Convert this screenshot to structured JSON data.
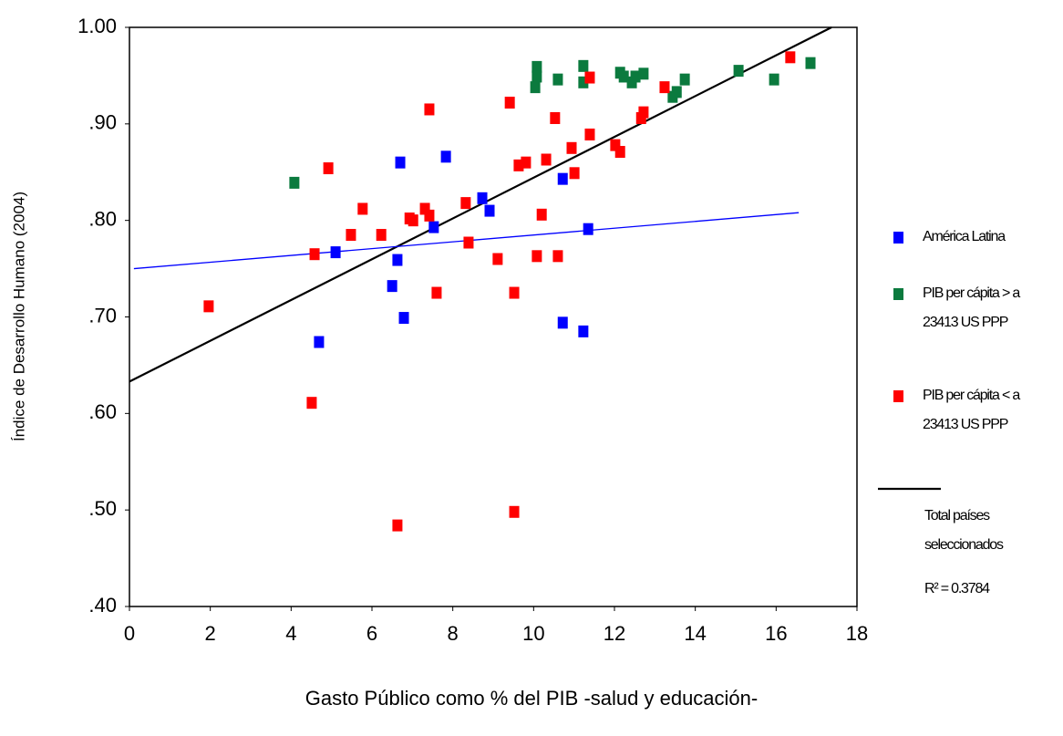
{
  "chart_data": {
    "type": "scatter",
    "x_label": "Gasto Público como % del PIB -salud y educación-",
    "y_label": "Índice de Desarrollo Humano (2004)",
    "xlim": [
      0,
      18
    ],
    "xticks": [
      0,
      2,
      4,
      6,
      8,
      10,
      12,
      14,
      16,
      18
    ],
    "ylim": [
      0.4,
      1
    ],
    "yticks": [
      {
        "value": 0.4,
        "label": ".40"
      },
      {
        "value": 0.5,
        "label": ".50"
      },
      {
        "value": 0.6,
        "label": ".60"
      },
      {
        "value": 0.7,
        "label": ".70"
      },
      {
        "value": 0.8,
        "label": ".80"
      },
      {
        "value": 0.9,
        "label": ".90"
      },
      {
        "value": 1,
        "label": "1.00"
      }
    ],
    "series": [
      {
        "name": "América Latina",
        "color": "#0000ff",
        "x": [
          4.69,
          5.1,
          6.5,
          6.63,
          6.7,
          6.79,
          7.53,
          7.83,
          8.73,
          8.91,
          10.72,
          10.72,
          11.23,
          11.35
        ],
        "values": [
          0.674,
          0.767,
          0.732,
          0.759,
          0.86,
          0.699,
          0.793,
          0.866,
          0.823,
          0.81,
          0.843,
          0.694,
          0.685,
          0.791
        ]
      },
      {
        "name": "PIB per cápita > a 23413 US PPP",
        "color": "#0b7a3e",
        "x": [
          4.08,
          10.08,
          10.08,
          10.04,
          10.6,
          11.23,
          11.23,
          12.14,
          12.23,
          12.43,
          12.52,
          12.72,
          13.44,
          13.54,
          13.74,
          15.07,
          15.95,
          16.85
        ],
        "values": [
          0.839,
          0.959,
          0.949,
          0.938,
          0.946,
          0.96,
          0.943,
          0.953,
          0.949,
          0.943,
          0.949,
          0.952,
          0.928,
          0.933,
          0.946,
          0.955,
          0.946,
          0.963
        ]
      },
      {
        "name": "PIB per cápita < a 23413 US PPP",
        "color": "#ff0000",
        "x": [
          1.96,
          4.51,
          4.58,
          4.92,
          5.48,
          5.77,
          6.23,
          6.63,
          6.93,
          7.02,
          7.31,
          7.42,
          7.42,
          7.6,
          8.32,
          8.39,
          9.11,
          9.41,
          9.52,
          9.52,
          9.63,
          9.81,
          10.08,
          10.2,
          10.31,
          10.53,
          10.6,
          10.94,
          11.01,
          11.39,
          11.39,
          12.02,
          12.14,
          12.66,
          12.72,
          13.24,
          16.35
        ],
        "values": [
          0.711,
          0.611,
          0.765,
          0.854,
          0.785,
          0.812,
          0.785,
          0.484,
          0.802,
          0.8,
          0.812,
          0.805,
          0.915,
          0.725,
          0.818,
          0.777,
          0.76,
          0.922,
          0.725,
          0.498,
          0.857,
          0.86,
          0.763,
          0.806,
          0.863,
          0.906,
          0.763,
          0.875,
          0.849,
          0.889,
          0.948,
          0.878,
          0.871,
          0.906,
          0.912,
          0.938,
          0.969
        ]
      }
    ],
    "trendlines": [
      {
        "name": "Total países seleccionados",
        "annotation": "R² = 0.3784",
        "color": "#000000",
        "x": [
          0,
          17.37
        ],
        "values": [
          0.633,
          1.0
        ]
      },
      {
        "color": "#0000ff",
        "x": [
          0.11,
          16.56
        ],
        "values": [
          0.75,
          0.808
        ]
      }
    ]
  }
}
